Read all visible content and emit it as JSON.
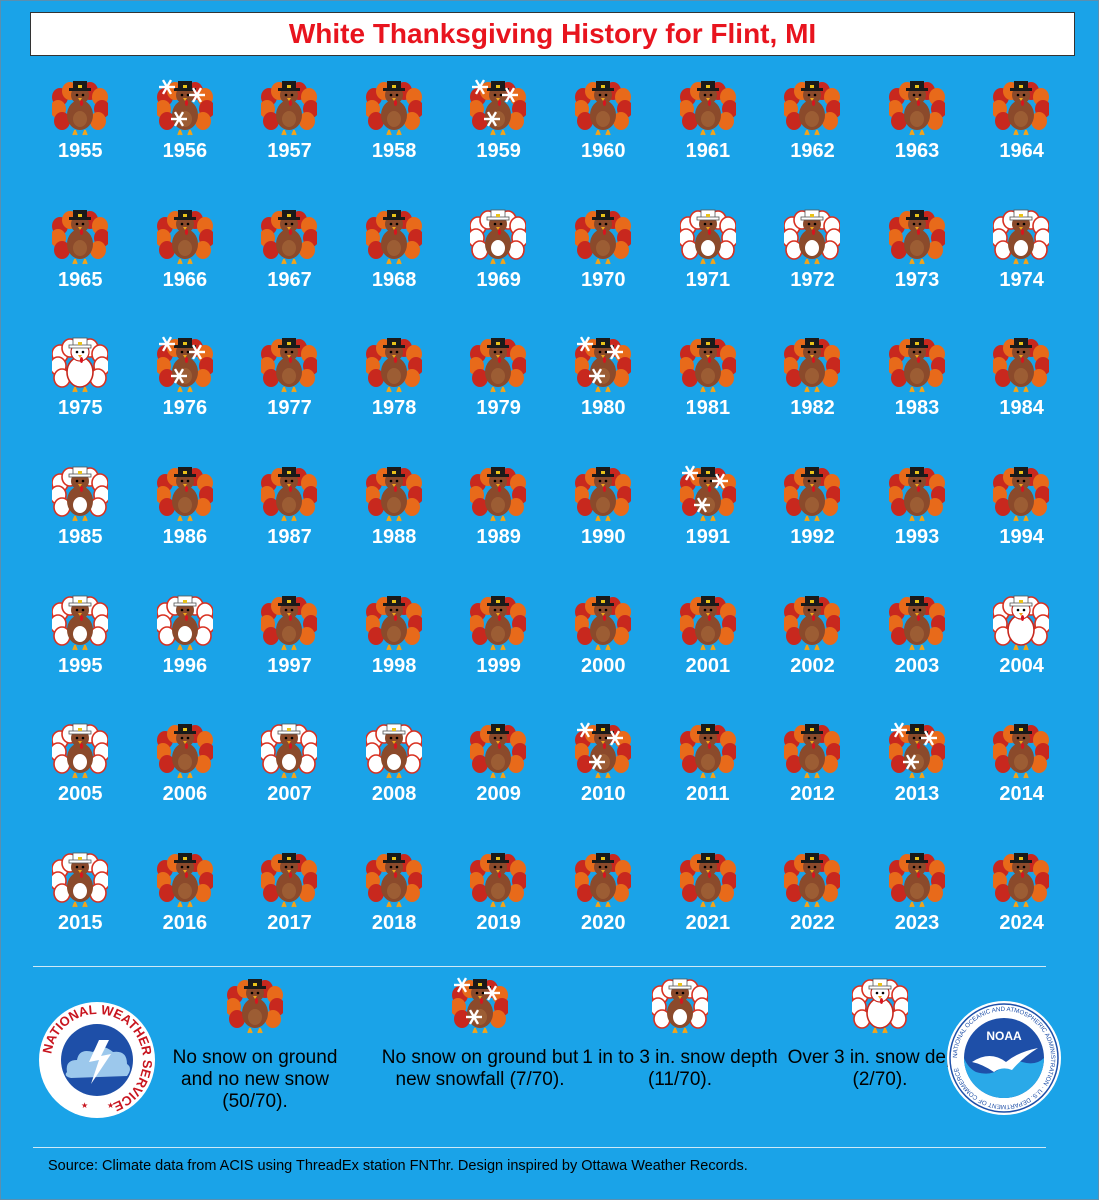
{
  "title": "White Thanksgiving History for Flint, MI",
  "years": [
    {
      "year": "1955",
      "cat": "none"
    },
    {
      "year": "1956",
      "cat": "snowfall"
    },
    {
      "year": "1957",
      "cat": "none"
    },
    {
      "year": "1958",
      "cat": "none"
    },
    {
      "year": "1959",
      "cat": "snowfall"
    },
    {
      "year": "1960",
      "cat": "none"
    },
    {
      "year": "1961",
      "cat": "none"
    },
    {
      "year": "1962",
      "cat": "none"
    },
    {
      "year": "1963",
      "cat": "none"
    },
    {
      "year": "1964",
      "cat": "none"
    },
    {
      "year": "1965",
      "cat": "none"
    },
    {
      "year": "1966",
      "cat": "none"
    },
    {
      "year": "1967",
      "cat": "none"
    },
    {
      "year": "1968",
      "cat": "none"
    },
    {
      "year": "1969",
      "cat": "depth1to3"
    },
    {
      "year": "1970",
      "cat": "none"
    },
    {
      "year": "1971",
      "cat": "depth1to3"
    },
    {
      "year": "1972",
      "cat": "depth1to3"
    },
    {
      "year": "1973",
      "cat": "none"
    },
    {
      "year": "1974",
      "cat": "depth1to3"
    },
    {
      "year": "1975",
      "cat": "depthover3"
    },
    {
      "year": "1976",
      "cat": "snowfall"
    },
    {
      "year": "1977",
      "cat": "none"
    },
    {
      "year": "1978",
      "cat": "none"
    },
    {
      "year": "1979",
      "cat": "none"
    },
    {
      "year": "1980",
      "cat": "snowfall"
    },
    {
      "year": "1981",
      "cat": "none"
    },
    {
      "year": "1982",
      "cat": "none"
    },
    {
      "year": "1983",
      "cat": "none"
    },
    {
      "year": "1984",
      "cat": "none"
    },
    {
      "year": "1985",
      "cat": "depth1to3"
    },
    {
      "year": "1986",
      "cat": "none"
    },
    {
      "year": "1987",
      "cat": "none"
    },
    {
      "year": "1988",
      "cat": "none"
    },
    {
      "year": "1989",
      "cat": "none"
    },
    {
      "year": "1990",
      "cat": "none"
    },
    {
      "year": "1991",
      "cat": "snowfall"
    },
    {
      "year": "1992",
      "cat": "none"
    },
    {
      "year": "1993",
      "cat": "none"
    },
    {
      "year": "1994",
      "cat": "none"
    },
    {
      "year": "1995",
      "cat": "depth1to3"
    },
    {
      "year": "1996",
      "cat": "depth1to3"
    },
    {
      "year": "1997",
      "cat": "none"
    },
    {
      "year": "1998",
      "cat": "none"
    },
    {
      "year": "1999",
      "cat": "none"
    },
    {
      "year": "2000",
      "cat": "none"
    },
    {
      "year": "2001",
      "cat": "none"
    },
    {
      "year": "2002",
      "cat": "none"
    },
    {
      "year": "2003",
      "cat": "none"
    },
    {
      "year": "2004",
      "cat": "depthover3"
    },
    {
      "year": "2005",
      "cat": "depth1to3"
    },
    {
      "year": "2006",
      "cat": "none"
    },
    {
      "year": "2007",
      "cat": "depth1to3"
    },
    {
      "year": "2008",
      "cat": "depth1to3"
    },
    {
      "year": "2009",
      "cat": "none"
    },
    {
      "year": "2010",
      "cat": "snowfall"
    },
    {
      "year": "2011",
      "cat": "none"
    },
    {
      "year": "2012",
      "cat": "none"
    },
    {
      "year": "2013",
      "cat": "snowfall"
    },
    {
      "year": "2014",
      "cat": "none"
    },
    {
      "year": "2015",
      "cat": "depth1to3"
    },
    {
      "year": "2016",
      "cat": "none"
    },
    {
      "year": "2017",
      "cat": "none"
    },
    {
      "year": "2018",
      "cat": "none"
    },
    {
      "year": "2019",
      "cat": "none"
    },
    {
      "year": "2020",
      "cat": "none"
    },
    {
      "year": "2021",
      "cat": "none"
    },
    {
      "year": "2022",
      "cat": "none"
    },
    {
      "year": "2023",
      "cat": "none"
    },
    {
      "year": "2024",
      "cat": "none"
    }
  ],
  "legend": [
    {
      "cat": "none",
      "label": "No snow on ground and no new snow (50/70)."
    },
    {
      "cat": "snowfall",
      "label": "No snow on ground but new snowfall (7/70)."
    },
    {
      "cat": "depth1to3",
      "label": "1 in to 3 in. snow depth (11/70)."
    },
    {
      "cat": "depthover3",
      "label": "Over 3 in. snow depth (2/70)."
    }
  ],
  "nws_logo_text": "NATIONAL WEATHER SERVICE",
  "noaa_logo_text": "NOAA",
  "noaa_ring_text": "NATIONAL OCEANIC AND ATMOSPHERIC ADMINISTRATION · U.S. DEPARTMENT OF COMMERCE",
  "source": "Source: Climate data from ACIS using ThreadEx station FNThr. Design inspired by Ottawa Weather Records.",
  "colors": {
    "background": "#1aa3e8",
    "title_text": "#e8141e",
    "turkey_body": "#8b4a2b",
    "turkey_feather_red": "#c8281e",
    "turkey_feather_orange": "#e86a1a",
    "snow": "#ffffff"
  }
}
